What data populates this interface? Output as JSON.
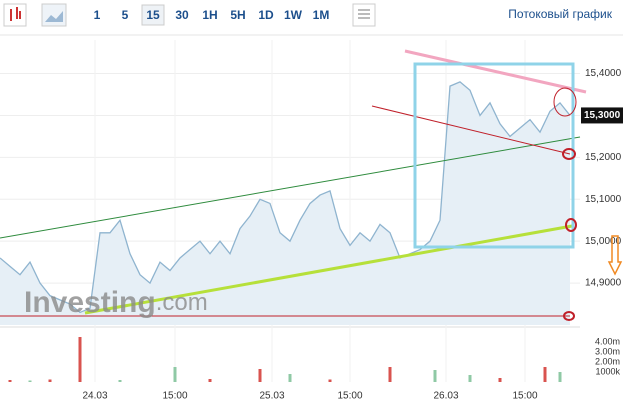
{
  "toolbar": {
    "intervals": [
      "1",
      "5",
      "15",
      "30",
      "1H",
      "5H",
      "1D",
      "1W",
      "1M"
    ],
    "active": "15",
    "link": "Потоковый график"
  },
  "watermark": {
    "brand": "Investing",
    "suffix": ".com"
  },
  "chart_data": [
    {
      "type": "line",
      "color": "#8fb4cf",
      "fill": "#e6eff6",
      "x": [
        0,
        1,
        2,
        3,
        4,
        5,
        6,
        7,
        8,
        9,
        10,
        11,
        12,
        13,
        14,
        15,
        16,
        17,
        18,
        19,
        20,
        21,
        22,
        23,
        24,
        25,
        26,
        27,
        28,
        29,
        30,
        31,
        32,
        33,
        34,
        35,
        36,
        37,
        38,
        39,
        40,
        41,
        42,
        43,
        44,
        45,
        46,
        47,
        48,
        49,
        50,
        51,
        52,
        53,
        54,
        55,
        56,
        57
      ],
      "values": [
        14.96,
        14.94,
        14.92,
        14.95,
        14.9,
        14.87,
        14.86,
        14.85,
        14.83,
        14.84,
        15.02,
        15.02,
        15.05,
        14.97,
        14.92,
        14.9,
        14.95,
        14.93,
        14.96,
        14.98,
        15.0,
        14.97,
        15.0,
        14.97,
        15.03,
        15.06,
        15.1,
        15.09,
        15.02,
        15.0,
        15.05,
        15.09,
        15.11,
        15.12,
        15.03,
        14.99,
        15.02,
        15.0,
        15.04,
        15.02,
        14.96,
        14.97,
        14.98,
        15.0,
        15.05,
        15.37,
        15.38,
        15.36,
        15.3,
        15.33,
        15.28,
        15.25,
        15.27,
        15.29,
        15.26,
        15.31,
        15.33,
        15.3
      ],
      "xlim": [
        0,
        58
      ],
      "xticks": [
        {
          "value": 9.5,
          "label": "24.03"
        },
        {
          "value": 17.5,
          "label": "15:00"
        },
        {
          "value": 27.2,
          "label": "25.03"
        },
        {
          "value": 35,
          "label": "15:00"
        },
        {
          "value": 44.6,
          "label": "26.03"
        },
        {
          "value": 52.5,
          "label": "15:00"
        }
      ],
      "ylim": [
        14.8,
        15.48
      ],
      "yticks": [
        {
          "value": 14.9,
          "label": "14,9000"
        },
        {
          "value": 15.0,
          "label": "15,0000"
        },
        {
          "value": 15.1,
          "label": "15,1000"
        },
        {
          "value": 15.2,
          "label": "15,2000"
        },
        {
          "value": 15.3,
          "label": "15,3000"
        },
        {
          "value": 15.4,
          "label": "15,4000"
        }
      ],
      "current": {
        "value": 15.3,
        "label": "15,3000"
      },
      "grid": true
    },
    {
      "type": "bar",
      "x": [
        1,
        3,
        5,
        8,
        12,
        17.5,
        21,
        26,
        29,
        33,
        39,
        43.5,
        47,
        50,
        54.5,
        56
      ],
      "values": [
        200000,
        150000,
        250000,
        4500000,
        200000,
        1500000,
        300000,
        1300000,
        800000,
        250000,
        1500000,
        1200000,
        700000,
        400000,
        1500000,
        1000000
      ],
      "colors": [
        "#d9534f",
        "#8fc9a5",
        "#d9534f",
        "#d9534f",
        "#8fc9a5",
        "#8fc9a5",
        "#d9534f",
        "#d9534f",
        "#8fc9a5",
        "#d9534f",
        "#d9534f",
        "#8fc9a5",
        "#8fc9a5",
        "#d9534f",
        "#d9534f",
        "#8fc9a5"
      ],
      "ylim": [
        0,
        4400000
      ],
      "yticks": [
        {
          "value": 4000000,
          "label": "4.00m"
        },
        {
          "value": 3000000,
          "label": "3.00m"
        },
        {
          "value": 2000000,
          "label": "2.00m"
        },
        {
          "value": 1000000,
          "label": "1000k"
        }
      ]
    }
  ]
}
